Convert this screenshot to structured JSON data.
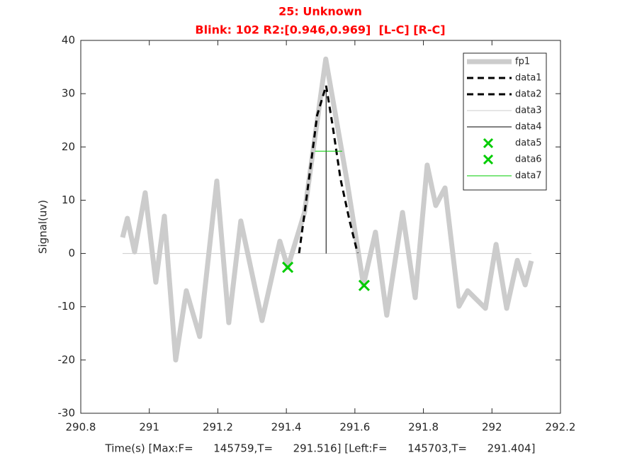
{
  "chart_data": {
    "type": "line",
    "title": "25: Unknown",
    "subtitle": "Blink: 102 R2:[0.946,0.969]  [L-C] [R-C]",
    "title_color": "#ff0000",
    "xlabel": "Time(s) [Max:F=      145759,T=      291.516] [Left:F=      145703,T=      291.404]",
    "ylabel": "Signal(uv)",
    "xlim": [
      290.8,
      292.2
    ],
    "xticks": [
      290.8,
      291,
      291.2,
      291.4,
      291.6,
      291.8,
      292,
      292.2
    ],
    "ylim": [
      -30,
      40
    ],
    "yticks": [
      -30,
      -20,
      -10,
      0,
      10,
      20,
      30,
      40
    ],
    "grid": false,
    "legend_position": "northeast",
    "series": [
      {
        "name": "fp1",
        "color": "#cccccc",
        "line_width": 7,
        "dash": "solid",
        "x": [
          290.922,
          290.936,
          290.957,
          290.988,
          291.019,
          291.044,
          291.077,
          291.108,
          291.147,
          291.197,
          291.232,
          291.267,
          291.329,
          291.381,
          291.404,
          291.453,
          291.515,
          291.577,
          291.625,
          291.66,
          291.693,
          291.739,
          291.776,
          291.811,
          291.836,
          291.863,
          291.904,
          291.929,
          291.981,
          292.012,
          292.043,
          292.074,
          292.097,
          292.115
        ],
        "values": [
          3.0,
          6.6,
          0.3,
          11.4,
          -5.4,
          7.0,
          -20,
          -7,
          -15.6,
          13.6,
          -13,
          6.1,
          -12.6,
          2.3,
          -2.6,
          7.7,
          36.5,
          13.6,
          -5.9,
          4.0,
          -11.6,
          7.7,
          -8.3,
          16.6,
          9.0,
          12.3,
          -9.9,
          -7,
          -10.3,
          1.7,
          -10.3,
          -1.3,
          -5.9,
          -1.4
        ]
      },
      {
        "name": "data1",
        "color": "#000000",
        "line_width": 3,
        "dash": "dashed",
        "x": [
          291.437,
          291.453,
          291.47,
          291.49,
          291.516
        ],
        "values": [
          0,
          7.5,
          16,
          26,
          31.5
        ]
      },
      {
        "name": "data2",
        "color": "#000000",
        "line_width": 3,
        "dash": "dashed",
        "x": [
          291.516,
          291.535,
          291.558,
          291.585,
          291.608
        ],
        "values": [
          31.5,
          24,
          14,
          6,
          0
        ]
      },
      {
        "name": "data3",
        "color": "#cccccc",
        "line_width": 1,
        "dash": "solid",
        "x": [
          290.922,
          292.115
        ],
        "values": [
          0,
          0
        ]
      },
      {
        "name": "data4",
        "color": "#000000",
        "line_width": 1,
        "dash": "solid",
        "x": [
          291.516,
          291.516
        ],
        "values": [
          0,
          31.5
        ]
      },
      {
        "name": "data5",
        "color": "#00cc00",
        "marker": "x",
        "x": [
          291.404
        ],
        "values": [
          -2.6
        ]
      },
      {
        "name": "data6",
        "color": "#00cc00",
        "marker": "x",
        "x": [
          291.627
        ],
        "values": [
          -6.0
        ]
      },
      {
        "name": "data7",
        "color": "#00cc00",
        "line_width": 1,
        "dash": "solid",
        "x": [
          291.484,
          291.563
        ],
        "values": [
          19.2,
          19.2
        ]
      }
    ]
  }
}
